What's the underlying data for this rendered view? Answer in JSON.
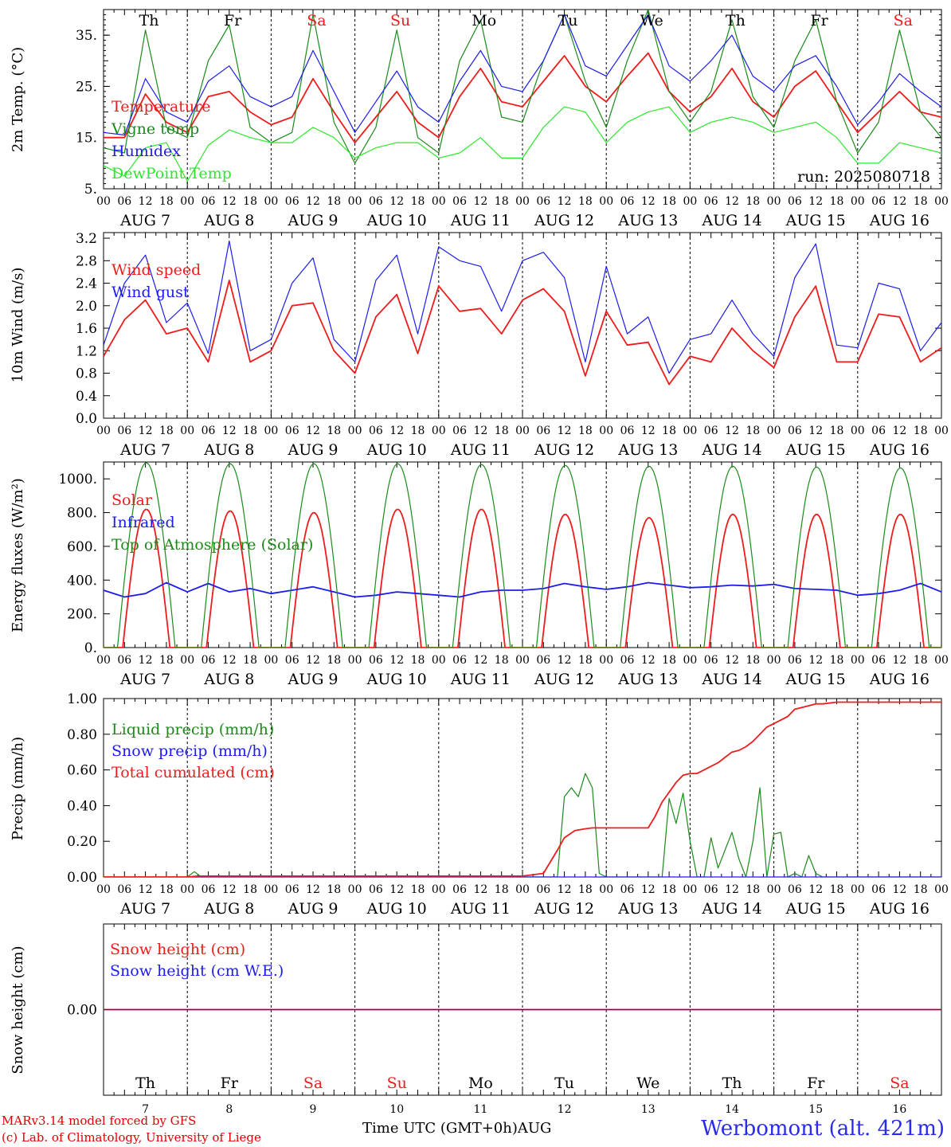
{
  "header": {
    "run": "run: 2025080718"
  },
  "footer": {
    "model": "MARv3.14 model forced by GFS",
    "lab": "(c) Lab. of Climatology, University of Liege",
    "station": "Werbomont (alt. 421m)",
    "xtitle": "Time UTC (GMT+0h)",
    "month": "AUG"
  },
  "time_axis": {
    "hour_labels": [
      "00",
      "06",
      "12",
      "18"
    ],
    "end_label": "00",
    "date_labels": [
      "AUG  7",
      "AUG  8",
      "AUG  9",
      "AUG 10",
      "AUG 11",
      "AUG 12",
      "AUG 13",
      "AUG 14",
      "AUG 15",
      "AUG 16"
    ],
    "day_numbers": [
      "7",
      "8",
      "9",
      "10",
      "11",
      "12",
      "13",
      "14",
      "15",
      "16"
    ],
    "weekdays": [
      "Th",
      "Fr",
      "Sa",
      "Su",
      "Mo",
      "Tu",
      "We",
      "Th",
      "Fr",
      "Sa"
    ],
    "weekend": [
      false,
      false,
      true,
      true,
      false,
      false,
      false,
      false,
      false,
      true
    ]
  },
  "colors": {
    "red": "#ee1c1c",
    "blue": "#1c1cee",
    "green": "#1b8a1b",
    "lightgreen": "#2ee62e",
    "black": "#000000"
  },
  "chart_data": [
    {
      "type": "line",
      "ylabel": "2m Temp. (°C)",
      "ylim": [
        5,
        40
      ],
      "yticks": [
        5,
        15,
        25,
        35
      ],
      "ytick_labels": [
        "5.",
        "15.",
        "25.",
        "35."
      ],
      "x_unit": "hours since AUG 7 00 UTC",
      "series": [
        {
          "name": "Temperature",
          "color": "red",
          "x": [
            0,
            6,
            12,
            18,
            24,
            30,
            36,
            42,
            48,
            54,
            60,
            66,
            72,
            78,
            84,
            90,
            96,
            102,
            108,
            114,
            120,
            126,
            132,
            138,
            144,
            150,
            156,
            162,
            168,
            174,
            180,
            186,
            192,
            198,
            204,
            210,
            216,
            222,
            228,
            234,
            240
          ],
          "y": [
            15,
            15,
            23.5,
            18,
            16,
            23,
            24,
            20,
            17.5,
            19,
            26.5,
            20,
            14,
            19,
            24,
            18,
            15,
            23,
            28.5,
            22,
            21,
            26,
            31,
            25,
            22,
            27,
            31.5,
            24,
            20,
            23,
            28.5,
            22,
            19,
            25,
            28,
            22,
            16,
            20,
            24,
            20,
            19
          ]
        },
        {
          "name": "Vigne temp",
          "color": "green",
          "x": [
            0,
            6,
            12,
            18,
            24,
            30,
            36,
            42,
            48,
            54,
            60,
            66,
            72,
            78,
            84,
            90,
            96,
            102,
            108,
            114,
            120,
            126,
            132,
            138,
            144,
            150,
            156,
            162,
            168,
            174,
            180,
            186,
            192,
            198,
            204,
            210,
            216,
            222,
            228,
            234,
            240
          ],
          "y": [
            13,
            12,
            36,
            17,
            15,
            30,
            37,
            17,
            14,
            16,
            39,
            18,
            10,
            17,
            36,
            15,
            12,
            30,
            38,
            19,
            18,
            30,
            39,
            26,
            17,
            30,
            40,
            24,
            18,
            24,
            38,
            23,
            17,
            30,
            38,
            22,
            12,
            18,
            36,
            20,
            15
          ]
        },
        {
          "name": "Humidex",
          "color": "blue",
          "x": [
            0,
            6,
            12,
            18,
            24,
            30,
            36,
            42,
            48,
            54,
            60,
            66,
            72,
            78,
            84,
            90,
            96,
            102,
            108,
            114,
            120,
            126,
            132,
            138,
            144,
            150,
            156,
            162,
            168,
            174,
            180,
            186,
            192,
            198,
            204,
            210,
            216,
            222,
            228,
            234,
            240
          ],
          "y": [
            16,
            15.5,
            26.5,
            20,
            18,
            26,
            29,
            23,
            21,
            23,
            32,
            24,
            16,
            22,
            28,
            21,
            18,
            26,
            32,
            25,
            24,
            30,
            39,
            29,
            27,
            33,
            39,
            29,
            26,
            30,
            35,
            27,
            24,
            29,
            31,
            25,
            17.5,
            22,
            27.5,
            24,
            21
          ]
        },
        {
          "name": "DewPoint Temp",
          "color": "lightgreen",
          "x": [
            0,
            6,
            12,
            18,
            24,
            30,
            36,
            42,
            48,
            54,
            60,
            66,
            72,
            78,
            84,
            90,
            96,
            102,
            108,
            114,
            120,
            126,
            132,
            138,
            144,
            150,
            156,
            162,
            168,
            174,
            180,
            186,
            192,
            198,
            204,
            210,
            216,
            222,
            228,
            234,
            240
          ],
          "y": [
            9.5,
            7.5,
            13,
            14,
            6.5,
            13.5,
            16.5,
            15,
            14,
            14,
            17,
            15,
            11,
            13,
            14,
            14,
            11,
            12,
            15,
            11,
            11,
            17,
            21,
            20,
            14,
            18,
            20,
            21,
            16,
            18,
            19,
            18,
            16,
            17,
            18,
            15,
            10,
            10,
            14,
            13,
            12
          ]
        }
      ]
    },
    {
      "type": "line",
      "ylabel": "10m Wind (m/s)",
      "ylim": [
        0,
        3.3
      ],
      "yticks": [
        0,
        0.4,
        0.8,
        1.2,
        1.6,
        2.0,
        2.4,
        2.8,
        3.2
      ],
      "ytick_labels": [
        "0.0",
        "0.4",
        "0.8",
        "1.2",
        "1.6",
        "2.0",
        "2.4",
        "2.8",
        "3.2"
      ],
      "x_unit": "hours since AUG 7 00 UTC",
      "series": [
        {
          "name": "Wind speed",
          "color": "red",
          "x": [
            0,
            6,
            12,
            18,
            24,
            30,
            36,
            42,
            48,
            54,
            60,
            66,
            72,
            78,
            84,
            90,
            96,
            102,
            108,
            114,
            120,
            126,
            132,
            138,
            144,
            150,
            156,
            162,
            168,
            174,
            180,
            186,
            192,
            198,
            204,
            210,
            216,
            222,
            228,
            234,
            240
          ],
          "y": [
            1.1,
            1.75,
            2.1,
            1.5,
            1.6,
            1.0,
            2.45,
            1.0,
            1.2,
            2.0,
            2.05,
            1.2,
            0.8,
            1.8,
            2.2,
            1.15,
            2.35,
            1.9,
            1.95,
            1.5,
            2.1,
            2.3,
            1.9,
            0.75,
            1.9,
            1.3,
            1.35,
            0.6,
            1.1,
            1.0,
            1.6,
            1.2,
            0.9,
            1.8,
            2.35,
            1.0,
            1.0,
            1.85,
            1.8,
            1.0,
            1.25
          ]
        },
        {
          "name": "Wind gust",
          "color": "blue",
          "x": [
            0,
            6,
            12,
            18,
            24,
            30,
            36,
            42,
            48,
            54,
            60,
            66,
            72,
            78,
            84,
            90,
            96,
            102,
            108,
            114,
            120,
            126,
            132,
            138,
            144,
            150,
            156,
            162,
            168,
            174,
            180,
            186,
            192,
            198,
            204,
            210,
            216,
            222,
            228,
            234,
            240
          ],
          "y": [
            1.3,
            2.4,
            2.9,
            1.7,
            2.05,
            1.15,
            3.15,
            1.2,
            1.4,
            2.4,
            2.85,
            1.4,
            1.0,
            2.45,
            2.9,
            1.5,
            3.05,
            2.8,
            2.7,
            1.9,
            2.8,
            2.95,
            2.5,
            1.0,
            2.7,
            1.5,
            1.8,
            0.8,
            1.4,
            1.5,
            2.1,
            1.5,
            1.1,
            2.5,
            3.1,
            1.3,
            1.25,
            2.4,
            2.3,
            1.2,
            1.7
          ]
        }
      ]
    },
    {
      "type": "line",
      "ylabel": "Energy fluxes (W/m²)",
      "ylim": [
        0,
        1100
      ],
      "yticks": [
        0,
        200,
        400,
        600,
        800,
        1000
      ],
      "ytick_labels": [
        "0.",
        "200.",
        "400.",
        "600.",
        "800.",
        "1000."
      ],
      "x_unit": "hours since AUG 7 00 UTC",
      "series": [
        {
          "name": "Solar",
          "color": "red",
          "diurnal_peaks": [
            820,
            810,
            800,
            820,
            820,
            790,
            770,
            790,
            790,
            790
          ]
        },
        {
          "name": "Infrared",
          "color": "blue",
          "x": [
            0,
            6,
            12,
            18,
            24,
            30,
            36,
            42,
            48,
            54,
            60,
            66,
            72,
            78,
            84,
            90,
            96,
            102,
            108,
            114,
            120,
            126,
            132,
            138,
            144,
            150,
            156,
            162,
            168,
            174,
            180,
            186,
            192,
            198,
            204,
            210,
            216,
            222,
            228,
            234,
            240
          ],
          "y": [
            340,
            300,
            320,
            385,
            330,
            380,
            330,
            350,
            320,
            340,
            360,
            330,
            300,
            310,
            330,
            320,
            310,
            300,
            330,
            340,
            340,
            350,
            380,
            360,
            345,
            360,
            385,
            370,
            355,
            360,
            370,
            365,
            375,
            350,
            345,
            340,
            310,
            320,
            340,
            380,
            330
          ]
        },
        {
          "name": "Top of Atmosphere (Solar)",
          "color": "green",
          "diurnal_peaks": [
            1095,
            1090,
            1090,
            1090,
            1085,
            1080,
            1075,
            1075,
            1070,
            1065
          ]
        }
      ]
    },
    {
      "type": "line",
      "ylabel": "Precip (mm/h)",
      "ylim": [
        0,
        1.0
      ],
      "yticks": [
        0,
        0.2,
        0.4,
        0.6,
        0.8,
        1.0
      ],
      "ytick_labels": [
        "0.00",
        "0.20",
        "0.40",
        "0.60",
        "0.80",
        "1.00"
      ],
      "x_unit": "hours since AUG 7 00 UTC",
      "series": [
        {
          "name": "Liquid precip (mm/h)",
          "color": "green",
          "x": [
            0,
            24,
            26,
            28,
            30,
            120,
            130,
            132,
            134,
            136,
            138,
            140,
            142,
            144,
            160,
            162,
            164,
            166,
            168,
            170,
            172,
            174,
            176,
            178,
            180,
            182,
            184,
            186,
            188,
            190,
            192,
            194,
            196,
            198,
            200,
            202,
            204,
            206,
            240
          ],
          "y": [
            0,
            0,
            0.03,
            0,
            0,
            0,
            0,
            0.45,
            0.5,
            0.45,
            0.58,
            0.5,
            0.02,
            0,
            0,
            0.44,
            0.3,
            0.47,
            0.2,
            0,
            0,
            0.22,
            0.05,
            0.15,
            0.25,
            0.1,
            0,
            0.2,
            0.5,
            0,
            0.24,
            0.25,
            0,
            0.02,
            0,
            0.12,
            0.02,
            0,
            0
          ]
        },
        {
          "name": "Snow precip (mm/h)",
          "color": "blue",
          "x": [
            0,
            240
          ],
          "y": [
            0,
            0
          ]
        },
        {
          "name": "Total cumulated (cm)",
          "color": "red",
          "x": [
            0,
            24,
            27,
            120,
            126,
            130,
            132,
            135,
            138,
            140,
            144,
            156,
            158,
            160,
            164,
            166,
            168,
            170,
            172,
            174,
            176,
            178,
            180,
            182,
            184,
            186,
            188,
            190,
            192,
            194,
            196,
            198,
            200,
            202,
            204,
            206,
            210,
            240
          ],
          "y": [
            0,
            0,
            0.005,
            0.005,
            0.02,
            0.15,
            0.22,
            0.26,
            0.27,
            0.275,
            0.275,
            0.275,
            0.34,
            0.42,
            0.53,
            0.57,
            0.58,
            0.58,
            0.6,
            0.62,
            0.64,
            0.67,
            0.7,
            0.71,
            0.73,
            0.76,
            0.8,
            0.84,
            0.86,
            0.88,
            0.9,
            0.94,
            0.95,
            0.96,
            0.97,
            0.97,
            0.98,
            0.98
          ]
        }
      ]
    },
    {
      "type": "line",
      "ylabel": "Snow height (cm)",
      "ylim": [
        -1,
        1
      ],
      "yticks": [
        0
      ],
      "ytick_labels": [
        "0.00"
      ],
      "x_unit": "hours since AUG 7 00 UTC",
      "series": [
        {
          "name": "Snow height (cm)",
          "color": "red",
          "x": [
            0,
            240
          ],
          "y": [
            0,
            0
          ]
        },
        {
          "name": "Snow height (cm W.E.)",
          "color": "blue",
          "x": [
            0,
            240
          ],
          "y": [
            0,
            0
          ]
        }
      ]
    }
  ]
}
